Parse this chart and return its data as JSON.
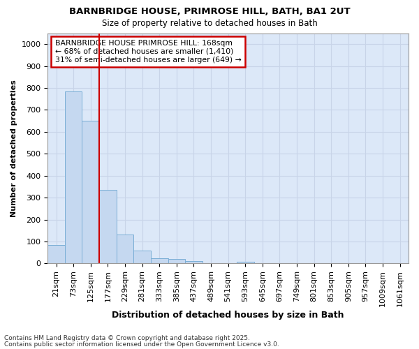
{
  "title1": "BARNBRIDGE HOUSE, PRIMROSE HILL, BATH, BA1 2UT",
  "title2": "Size of property relative to detached houses in Bath",
  "xlabel": "Distribution of detached houses by size in Bath",
  "ylabel": "Number of detached properties",
  "categories": [
    "21sqm",
    "73sqm",
    "125sqm",
    "177sqm",
    "229sqm",
    "281sqm",
    "333sqm",
    "385sqm",
    "437sqm",
    "489sqm",
    "541sqm",
    "593sqm",
    "645sqm",
    "697sqm",
    "749sqm",
    "801sqm",
    "853sqm",
    "905sqm",
    "957sqm",
    "1009sqm",
    "1061sqm"
  ],
  "values": [
    83,
    783,
    649,
    335,
    133,
    58,
    24,
    19,
    10,
    0,
    0,
    8,
    0,
    0,
    0,
    0,
    0,
    0,
    0,
    0,
    0
  ],
  "bar_color": "#c5d8f0",
  "bar_edge_color": "#7aaed6",
  "red_line_x": 3.0,
  "annotation_line1": "BARNBRIDGE HOUSE PRIMROSE HILL: 168sqm",
  "annotation_line2": "← 68% of detached houses are smaller (1,410)",
  "annotation_line3": "31% of semi-detached houses are larger (649) →",
  "annotation_box_color": "#ffffff",
  "annotation_box_edge": "#cc0000",
  "red_line_color": "#cc0000",
  "ylim": [
    0,
    1050
  ],
  "yticks": [
    0,
    100,
    200,
    300,
    400,
    500,
    600,
    700,
    800,
    900,
    1000
  ],
  "grid_color": "#c8d4e8",
  "bg_color": "#dce8f8",
  "fig_bg_color": "#ffffff",
  "footer1": "Contains HM Land Registry data © Crown copyright and database right 2025.",
  "footer2": "Contains public sector information licensed under the Open Government Licence v3.0.",
  "title1_fontsize": 9.5,
  "title2_fontsize": 8.5,
  "xlabel_fontsize": 9,
  "ylabel_fontsize": 8,
  "tick_fontsize": 8,
  "footer_fontsize": 6.5,
  "annotation_fontsize": 7.8
}
